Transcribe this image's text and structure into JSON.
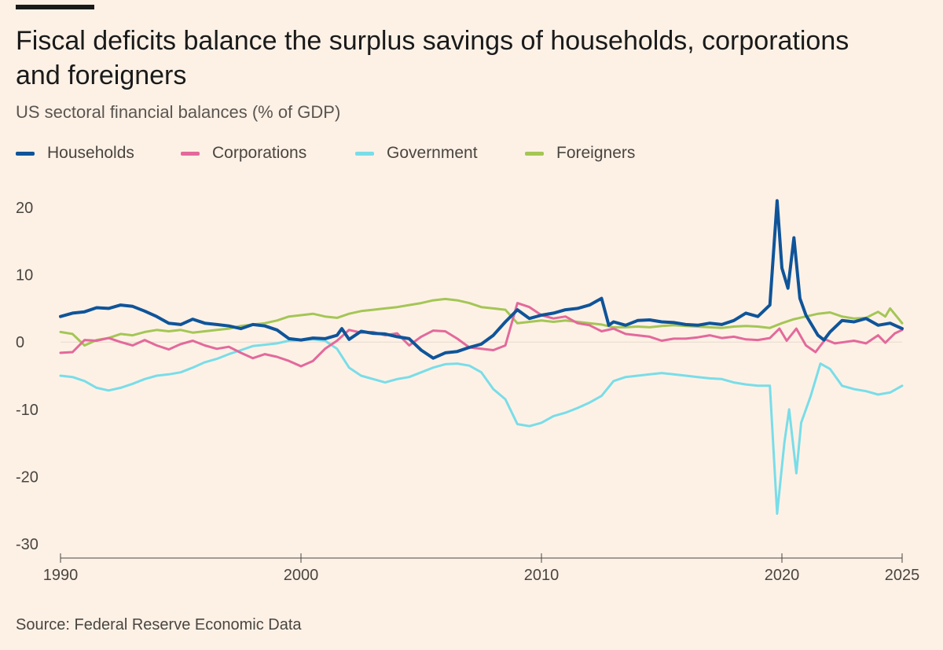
{
  "title": "Fiscal deficits balance the surplus savings of households, corporations and foreigners",
  "subtitle": "US sectoral financial balances (% of GDP)",
  "source": "Source: Federal Reserve Economic Data",
  "legend": [
    {
      "name": "Households",
      "color": "#0f5499"
    },
    {
      "name": "Corporations",
      "color": "#e3699b"
    },
    {
      "name": "Government",
      "color": "#79dde8"
    },
    {
      "name": "Foreigners",
      "color": "#a4c655"
    }
  ],
  "chart_data": {
    "type": "line",
    "title": "Fiscal deficits balance the surplus savings of households, corporations and foreigners",
    "subtitle": "US sectoral financial balances (% of GDP)",
    "xlabel": "",
    "ylabel": "",
    "xlim": [
      1990,
      2025
    ],
    "ylim": [
      -30,
      22
    ],
    "x_ticks": [
      1990,
      2000,
      2010,
      2020,
      2025
    ],
    "x_tick_labels": [
      "1990",
      "2000",
      "2010",
      "2020",
      "2025"
    ],
    "y_ticks": [
      20,
      10,
      0,
      -10,
      -20,
      -30
    ],
    "y_tick_labels": [
      "20",
      "10",
      "0",
      "-10",
      "-20",
      "-30"
    ],
    "grid": false,
    "legend_position": "top-left",
    "series": [
      {
        "name": "Households",
        "color": "#0f5499",
        "stroke_width": 4,
        "points": [
          [
            1990,
            3.8
          ],
          [
            1990.5,
            4.3
          ],
          [
            1991,
            4.5
          ],
          [
            1991.5,
            5.1
          ],
          [
            1992,
            5.0
          ],
          [
            1992.5,
            5.5
          ],
          [
            1993,
            5.3
          ],
          [
            1993.5,
            4.6
          ],
          [
            1994,
            3.8
          ],
          [
            1994.5,
            2.8
          ],
          [
            1995,
            2.6
          ],
          [
            1995.5,
            3.4
          ],
          [
            1996,
            2.8
          ],
          [
            1996.5,
            2.6
          ],
          [
            1997,
            2.4
          ],
          [
            1997.5,
            2.0
          ],
          [
            1998,
            2.6
          ],
          [
            1998.5,
            2.4
          ],
          [
            1999,
            1.8
          ],
          [
            1999.5,
            0.5
          ],
          [
            2000,
            0.3
          ],
          [
            2000.5,
            0.6
          ],
          [
            2001,
            0.5
          ],
          [
            2001.5,
            1.0
          ],
          [
            2001.7,
            2.0
          ],
          [
            2002,
            0.4
          ],
          [
            2002.5,
            1.6
          ],
          [
            2003,
            1.3
          ],
          [
            2003.5,
            1.2
          ],
          [
            2004,
            0.8
          ],
          [
            2004.5,
            0.5
          ],
          [
            2005,
            -1.2
          ],
          [
            2005.5,
            -2.4
          ],
          [
            2006,
            -1.6
          ],
          [
            2006.5,
            -1.4
          ],
          [
            2007,
            -0.8
          ],
          [
            2007.5,
            -0.3
          ],
          [
            2008,
            1.0
          ],
          [
            2008.5,
            3.0
          ],
          [
            2009,
            4.8
          ],
          [
            2009.5,
            3.5
          ],
          [
            2010,
            4.0
          ],
          [
            2010.5,
            4.3
          ],
          [
            2011,
            4.8
          ],
          [
            2011.5,
            5.0
          ],
          [
            2012,
            5.5
          ],
          [
            2012.5,
            6.5
          ],
          [
            2012.8,
            2.5
          ],
          [
            2013,
            3.0
          ],
          [
            2013.5,
            2.5
          ],
          [
            2014,
            3.2
          ],
          [
            2014.5,
            3.3
          ],
          [
            2015,
            3.0
          ],
          [
            2015.5,
            2.9
          ],
          [
            2016,
            2.6
          ],
          [
            2016.5,
            2.5
          ],
          [
            2017,
            2.8
          ],
          [
            2017.5,
            2.6
          ],
          [
            2018,
            3.2
          ],
          [
            2018.5,
            4.3
          ],
          [
            2019,
            3.8
          ],
          [
            2019.5,
            5.5
          ],
          [
            2019.8,
            21.0
          ],
          [
            2020,
            11.0
          ],
          [
            2020.25,
            8.0
          ],
          [
            2020.5,
            15.5
          ],
          [
            2020.75,
            6.5
          ],
          [
            2021,
            4.0
          ],
          [
            2021.5,
            1.0
          ],
          [
            2021.75,
            0.3
          ],
          [
            2022,
            1.5
          ],
          [
            2022.5,
            3.2
          ],
          [
            2023,
            3.0
          ],
          [
            2023.5,
            3.5
          ],
          [
            2024,
            2.5
          ],
          [
            2024.5,
            2.8
          ],
          [
            2025,
            2.0
          ]
        ]
      },
      {
        "name": "Corporations",
        "color": "#e3699b",
        "stroke_width": 3,
        "points": [
          [
            1990,
            -1.6
          ],
          [
            1990.5,
            -1.5
          ],
          [
            1991,
            0.3
          ],
          [
            1991.5,
            0.2
          ],
          [
            1992,
            0.6
          ],
          [
            1992.5,
            0.0
          ],
          [
            1993,
            -0.5
          ],
          [
            1993.5,
            0.3
          ],
          [
            1994,
            -0.5
          ],
          [
            1994.5,
            -1.1
          ],
          [
            1995,
            -0.3
          ],
          [
            1995.5,
            0.2
          ],
          [
            1996,
            -0.5
          ],
          [
            1996.5,
            -1.0
          ],
          [
            1997,
            -0.7
          ],
          [
            1997.5,
            -1.6
          ],
          [
            1998,
            -2.4
          ],
          [
            1998.5,
            -1.8
          ],
          [
            1999,
            -2.2
          ],
          [
            1999.5,
            -2.8
          ],
          [
            2000,
            -3.6
          ],
          [
            2000.5,
            -2.8
          ],
          [
            2001,
            -1.0
          ],
          [
            2001.5,
            0.2
          ],
          [
            2002,
            1.8
          ],
          [
            2002.5,
            1.4
          ],
          [
            2003,
            1.5
          ],
          [
            2003.5,
            1.0
          ],
          [
            2004,
            1.3
          ],
          [
            2004.5,
            -0.5
          ],
          [
            2005,
            0.8
          ],
          [
            2005.5,
            1.7
          ],
          [
            2006,
            1.6
          ],
          [
            2006.5,
            0.5
          ],
          [
            2007,
            -0.8
          ],
          [
            2007.5,
            -1.0
          ],
          [
            2008,
            -1.2
          ],
          [
            2008.5,
            -0.5
          ],
          [
            2009,
            5.8
          ],
          [
            2009.5,
            5.2
          ],
          [
            2010,
            4.0
          ],
          [
            2010.5,
            3.5
          ],
          [
            2011,
            3.8
          ],
          [
            2011.5,
            2.8
          ],
          [
            2012,
            2.5
          ],
          [
            2012.5,
            1.6
          ],
          [
            2013,
            2.0
          ],
          [
            2013.5,
            1.2
          ],
          [
            2014,
            1.0
          ],
          [
            2014.5,
            0.8
          ],
          [
            2015,
            0.2
          ],
          [
            2015.5,
            0.5
          ],
          [
            2016,
            0.5
          ],
          [
            2016.5,
            0.7
          ],
          [
            2017,
            1.0
          ],
          [
            2017.5,
            0.6
          ],
          [
            2018,
            0.8
          ],
          [
            2018.5,
            0.4
          ],
          [
            2019,
            0.3
          ],
          [
            2019.5,
            0.6
          ],
          [
            2019.9,
            2.0
          ],
          [
            2020.2,
            0.2
          ],
          [
            2020.6,
            2.0
          ],
          [
            2021,
            -0.5
          ],
          [
            2021.4,
            -1.5
          ],
          [
            2021.8,
            0.4
          ],
          [
            2022.2,
            -0.2
          ],
          [
            2022.6,
            0.0
          ],
          [
            2023,
            0.2
          ],
          [
            2023.5,
            -0.2
          ],
          [
            2024,
            1.0
          ],
          [
            2024.3,
            -0.1
          ],
          [
            2024.7,
            1.3
          ],
          [
            2025,
            1.8
          ]
        ]
      },
      {
        "name": "Government",
        "color": "#79dde8",
        "stroke_width": 3,
        "points": [
          [
            1990,
            -5.0
          ],
          [
            1990.5,
            -5.2
          ],
          [
            1991,
            -5.8
          ],
          [
            1991.5,
            -6.8
          ],
          [
            1992,
            -7.2
          ],
          [
            1992.5,
            -6.8
          ],
          [
            1993,
            -6.2
          ],
          [
            1993.5,
            -5.5
          ],
          [
            1994,
            -5.0
          ],
          [
            1994.5,
            -4.8
          ],
          [
            1995,
            -4.5
          ],
          [
            1995.5,
            -3.8
          ],
          [
            1996,
            -3.0
          ],
          [
            1996.5,
            -2.5
          ],
          [
            1997,
            -1.8
          ],
          [
            1997.5,
            -1.2
          ],
          [
            1998,
            -0.6
          ],
          [
            1998.5,
            -0.4
          ],
          [
            1999,
            -0.2
          ],
          [
            1999.5,
            0.2
          ],
          [
            2000,
            0.3
          ],
          [
            2000.5,
            0.4
          ],
          [
            2001,
            0.2
          ],
          [
            2001.5,
            -1.0
          ],
          [
            2002,
            -3.8
          ],
          [
            2002.5,
            -5.0
          ],
          [
            2003,
            -5.5
          ],
          [
            2003.5,
            -6.0
          ],
          [
            2004,
            -5.5
          ],
          [
            2004.5,
            -5.2
          ],
          [
            2005,
            -4.5
          ],
          [
            2005.5,
            -3.8
          ],
          [
            2006,
            -3.3
          ],
          [
            2006.5,
            -3.2
          ],
          [
            2007,
            -3.5
          ],
          [
            2007.5,
            -4.5
          ],
          [
            2008,
            -7.0
          ],
          [
            2008.5,
            -8.5
          ],
          [
            2009,
            -12.2
          ],
          [
            2009.5,
            -12.5
          ],
          [
            2010,
            -12.0
          ],
          [
            2010.5,
            -11.0
          ],
          [
            2011,
            -10.5
          ],
          [
            2011.5,
            -9.8
          ],
          [
            2012,
            -9.0
          ],
          [
            2012.5,
            -8.0
          ],
          [
            2013,
            -5.8
          ],
          [
            2013.5,
            -5.2
          ],
          [
            2014,
            -5.0
          ],
          [
            2014.5,
            -4.8
          ],
          [
            2015,
            -4.6
          ],
          [
            2015.5,
            -4.8
          ],
          [
            2016,
            -5.0
          ],
          [
            2016.5,
            -5.2
          ],
          [
            2017,
            -5.4
          ],
          [
            2017.5,
            -5.5
          ],
          [
            2018,
            -6.0
          ],
          [
            2018.5,
            -6.3
          ],
          [
            2019,
            -6.5
          ],
          [
            2019.5,
            -6.5
          ],
          [
            2019.8,
            -25.5
          ],
          [
            2020.1,
            -15.0
          ],
          [
            2020.3,
            -10.0
          ],
          [
            2020.6,
            -19.5
          ],
          [
            2020.8,
            -12.0
          ],
          [
            2021.2,
            -8.0
          ],
          [
            2021.6,
            -3.2
          ],
          [
            2022,
            -4.0
          ],
          [
            2022.5,
            -6.5
          ],
          [
            2023,
            -7.0
          ],
          [
            2023.5,
            -7.3
          ],
          [
            2024,
            -7.8
          ],
          [
            2024.5,
            -7.5
          ],
          [
            2025,
            -6.5
          ]
        ]
      },
      {
        "name": "Foreigners",
        "color": "#a4c655",
        "stroke_width": 3,
        "points": [
          [
            1990,
            1.5
          ],
          [
            1990.5,
            1.2
          ],
          [
            1991,
            -0.5
          ],
          [
            1991.5,
            0.3
          ],
          [
            1992,
            0.6
          ],
          [
            1992.5,
            1.2
          ],
          [
            1993,
            1.0
          ],
          [
            1993.5,
            1.5
          ],
          [
            1994,
            1.8
          ],
          [
            1994.5,
            1.6
          ],
          [
            1995,
            1.8
          ],
          [
            1995.5,
            1.4
          ],
          [
            1996,
            1.6
          ],
          [
            1996.5,
            1.8
          ],
          [
            1997,
            2.0
          ],
          [
            1997.5,
            2.4
          ],
          [
            1998,
            2.6
          ],
          [
            1998.5,
            2.8
          ],
          [
            1999,
            3.2
          ],
          [
            1999.5,
            3.8
          ],
          [
            2000,
            4.0
          ],
          [
            2000.5,
            4.2
          ],
          [
            2001,
            3.8
          ],
          [
            2001.5,
            3.6
          ],
          [
            2002,
            4.2
          ],
          [
            2002.5,
            4.6
          ],
          [
            2003,
            4.8
          ],
          [
            2003.5,
            5.0
          ],
          [
            2004,
            5.2
          ],
          [
            2004.5,
            5.5
          ],
          [
            2005,
            5.8
          ],
          [
            2005.5,
            6.2
          ],
          [
            2006,
            6.4
          ],
          [
            2006.5,
            6.2
          ],
          [
            2007,
            5.8
          ],
          [
            2007.5,
            5.2
          ],
          [
            2008,
            5.0
          ],
          [
            2008.5,
            4.8
          ],
          [
            2009,
            2.8
          ],
          [
            2009.5,
            3.0
          ],
          [
            2010,
            3.2
          ],
          [
            2010.5,
            3.0
          ],
          [
            2011,
            3.2
          ],
          [
            2011.5,
            3.0
          ],
          [
            2012,
            2.8
          ],
          [
            2012.5,
            2.6
          ],
          [
            2013,
            2.2
          ],
          [
            2013.5,
            2.2
          ],
          [
            2014,
            2.3
          ],
          [
            2014.5,
            2.2
          ],
          [
            2015,
            2.4
          ],
          [
            2015.5,
            2.5
          ],
          [
            2016,
            2.4
          ],
          [
            2016.5,
            2.3
          ],
          [
            2017,
            2.2
          ],
          [
            2017.5,
            2.1
          ],
          [
            2018,
            2.3
          ],
          [
            2018.5,
            2.4
          ],
          [
            2019,
            2.3
          ],
          [
            2019.5,
            2.1
          ],
          [
            2020,
            2.8
          ],
          [
            2020.5,
            3.4
          ],
          [
            2021,
            3.8
          ],
          [
            2021.5,
            4.2
          ],
          [
            2022,
            4.4
          ],
          [
            2022.5,
            3.8
          ],
          [
            2023,
            3.5
          ],
          [
            2023.5,
            3.6
          ],
          [
            2024,
            4.5
          ],
          [
            2024.3,
            3.8
          ],
          [
            2024.5,
            5.0
          ],
          [
            2025,
            2.8
          ]
        ]
      }
    ]
  }
}
